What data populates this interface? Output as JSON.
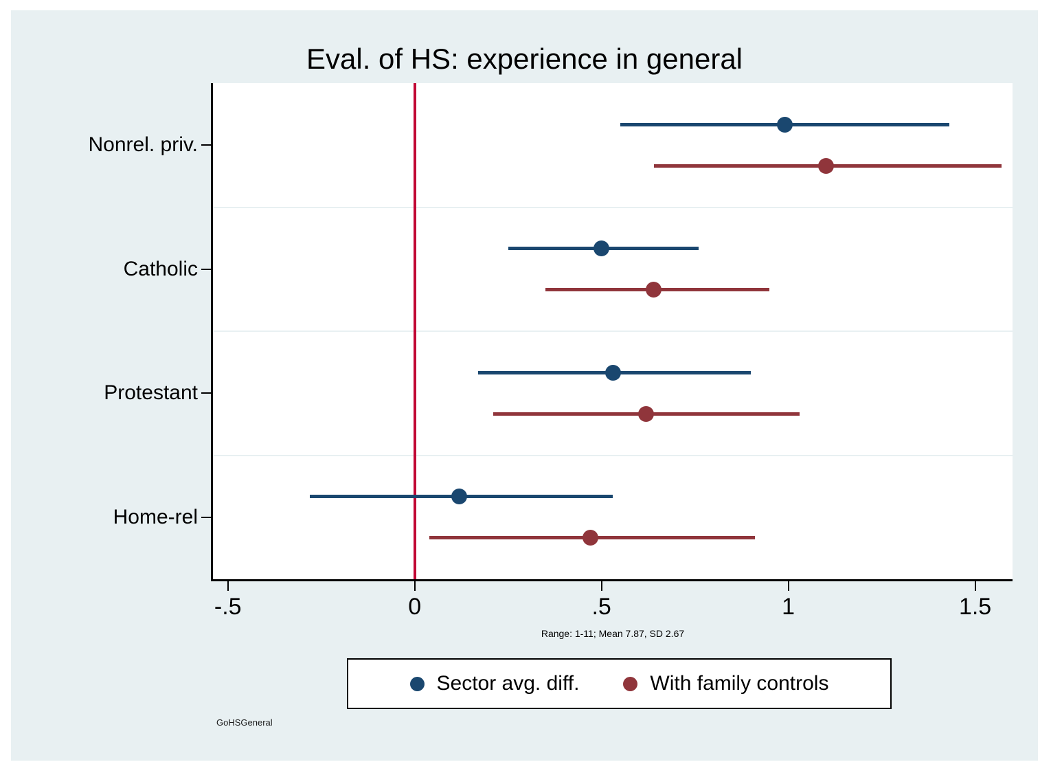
{
  "title": "Eval. of HS: experience in general",
  "note": "Range: 1-11; Mean 7.87, SD 2.67",
  "watermark": "GoHSGeneral",
  "colors": {
    "canvas_bg": "#e8f0f2",
    "plot_bg": "#ffffff",
    "grid": "#e8f0f2",
    "axis": "#000000",
    "zero_line": "#c10534",
    "navy": "#1a476f",
    "maroon": "#90353b"
  },
  "legend": {
    "items": [
      {
        "label": "Sector avg. diff.",
        "color": "#1a476f"
      },
      {
        "label": "With family controls",
        "color": "#90353b"
      }
    ]
  },
  "chart_data": {
    "type": "scatter",
    "subtype": "coefficient-plot-with-ci",
    "title": "Eval. of HS: experience in general",
    "categories": [
      "Nonrel. priv.",
      "Catholic",
      "Protestant",
      "Home-rel"
    ],
    "series": [
      {
        "name": "Sector avg. diff.",
        "color": "#1a476f",
        "estimates": [
          0.99,
          0.5,
          0.53,
          0.12
        ],
        "ci_low": [
          0.55,
          0.25,
          0.17,
          -0.28
        ],
        "ci_high": [
          1.43,
          0.76,
          0.9,
          0.53
        ]
      },
      {
        "name": "With family controls",
        "color": "#90353b",
        "estimates": [
          1.1,
          0.64,
          0.62,
          0.47
        ],
        "ci_low": [
          0.64,
          0.35,
          0.21,
          0.04
        ],
        "ci_high": [
          1.57,
          0.95,
          1.03,
          0.91
        ]
      }
    ],
    "x_ticks": [
      -0.5,
      0,
      0.5,
      1,
      1.5
    ],
    "x_tick_labels": [
      "-.5",
      "0",
      ".5",
      "1",
      "1.5"
    ],
    "xlim": [
      -0.54,
      1.6
    ],
    "zero_line_x": 0,
    "grid": "horizontal lines at category band boundaries",
    "legend_position": "bottom-center",
    "xlabel": "",
    "ylabel": ""
  }
}
